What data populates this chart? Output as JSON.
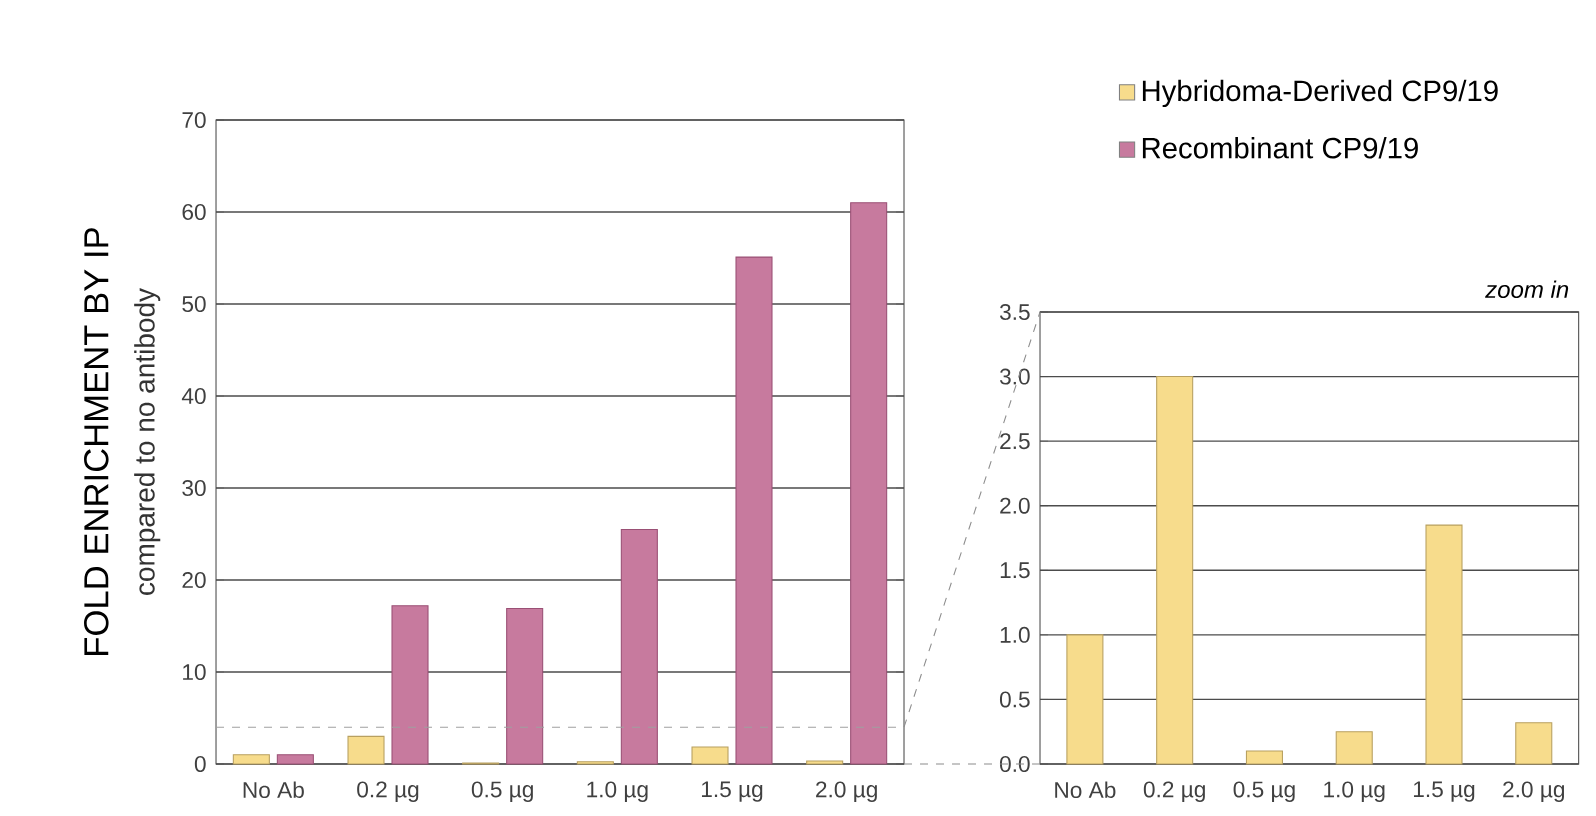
{
  "chart_data": [
    {
      "type": "bar",
      "ylabel": "FOLD ENRICHMENT BY IP",
      "annotations": [
        "compared to no antibody"
      ],
      "categories": [
        "No Ab",
        "0.2 µg",
        "0.5 µg",
        "1.0 µg",
        "1.5 µg",
        "2.0 µg"
      ],
      "series": [
        {
          "name": "Hybridoma-Derived CP9/19",
          "color": "#f7dc8c",
          "values": [
            1.0,
            3.0,
            0.1,
            0.25,
            1.85,
            0.32
          ]
        },
        {
          "name": "Recombinant CP9/19",
          "color": "#c77a9e",
          "values": [
            1.0,
            17.2,
            16.9,
            25.5,
            55.1,
            61.0
          ]
        }
      ],
      "ylim": [
        0,
        70
      ],
      "yticks": [
        0,
        10,
        20,
        30,
        40,
        50,
        60,
        70
      ],
      "grid": "y",
      "legend": "right",
      "ref_lines": [
        {
          "axis": "y",
          "value": 4,
          "color": "#a0a0a0",
          "line_style": "dashed"
        }
      ]
    },
    {
      "type": "bar",
      "annotations": [
        "*zoom in*"
      ],
      "categories": [
        "No Ab",
        "0.2 µg",
        "0.5 µg",
        "1.0 µg",
        "1.5 µg",
        "2.0 µg"
      ],
      "series": [
        {
          "color": "#f7dc8c",
          "values": [
            1.0,
            3.0,
            0.1,
            0.25,
            1.85,
            0.32
          ]
        }
      ],
      "ylim": [
        0,
        3.5
      ],
      "yticks": [
        {
          "value": 0,
          "label": "0.0"
        },
        {
          "value": 0.5,
          "label": "0.5"
        },
        {
          "value": 1,
          "label": "1.0"
        },
        {
          "value": 1.5,
          "label": "1.5"
        },
        {
          "value": 2,
          "label": "2.0"
        },
        {
          "value": 2.5,
          "label": "2.5"
        },
        {
          "value": 3,
          "label": "3.0"
        },
        {
          "value": 3.5,
          "label": "3.5"
        }
      ],
      "grid": "y"
    }
  ]
}
